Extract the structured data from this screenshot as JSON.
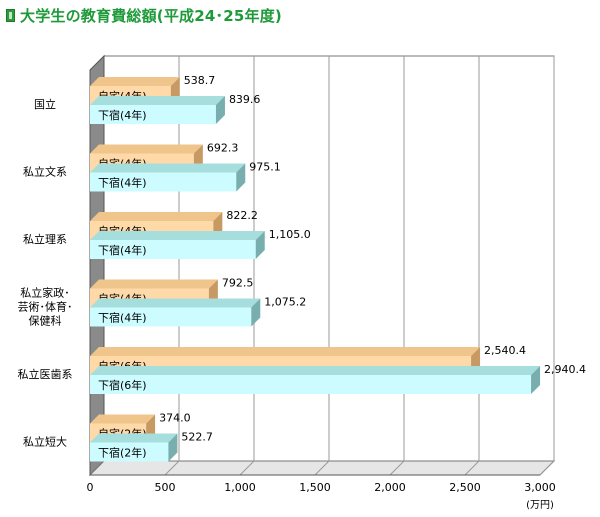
{
  "header": {
    "title": "大学生の教育費総額(平成24･25年度)"
  },
  "colors": {
    "home_front": "#ffd9a8",
    "home_top": "#f0c58c",
    "home_side": "#c89a63",
    "away_front": "#ccfcff",
    "away_top": "#a6dede",
    "away_side": "#78aeae",
    "wall": "#8a8a8a",
    "grid": "#999999"
  },
  "chart_data": {
    "type": "bar",
    "orientation": "horizontal",
    "style": "3d",
    "categories": [
      "国立",
      "私立文系",
      "私立理系",
      "私立家政･\n芸術･体育･\n保健科",
      "私立医歯系",
      "私立短大"
    ],
    "series": [
      {
        "key": "home",
        "bar_labels": [
          "自宅(4年)",
          "自宅(4年)",
          "自宅(4年)",
          "自宅(4年)",
          "自宅(6年)",
          "自宅(2年)"
        ],
        "values": [
          538.7,
          692.3,
          822.2,
          792.5,
          2540.4,
          374.0
        ],
        "value_labels": [
          "538.7",
          "692.3",
          "822.2",
          "792.5",
          "2,540.4",
          "374.0"
        ]
      },
      {
        "key": "away",
        "bar_labels": [
          "下宿(4年)",
          "下宿(4年)",
          "下宿(4年)",
          "下宿(4年)",
          "下宿(6年)",
          "下宿(2年)"
        ],
        "values": [
          839.6,
          975.1,
          1105.0,
          1075.2,
          2940.4,
          522.7
        ],
        "value_labels": [
          "839.6",
          "975.1",
          "1,105.0",
          "1,075.2",
          "2,940.4",
          "522.7"
        ]
      }
    ],
    "x_ticks": [
      0,
      500,
      1000,
      1500,
      2000,
      2500,
      3000
    ],
    "x_tick_labels": [
      "0",
      "500",
      "1,000",
      "1,500",
      "2,000",
      "2,500",
      "3,000"
    ],
    "xlim": [
      0,
      3000
    ],
    "unit_label": "(万円)",
    "grid": true
  }
}
